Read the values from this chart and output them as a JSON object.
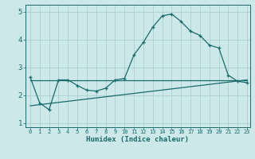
{
  "xlabel": "Humidex (Indice chaleur)",
  "bg_color": "#cce8e8",
  "grid_color": "#aacfcf",
  "line_color": "#1a6b6b",
  "xlim": [
    -0.5,
    23.3
  ],
  "ylim": [
    0.85,
    5.25
  ],
  "yticks": [
    1,
    2,
    3,
    4,
    5
  ],
  "xticks": [
    0,
    1,
    2,
    3,
    4,
    5,
    6,
    7,
    8,
    9,
    10,
    11,
    12,
    13,
    14,
    15,
    16,
    17,
    18,
    19,
    20,
    21,
    22,
    23
  ],
  "curve1_x": [
    0,
    1,
    2,
    3,
    4,
    5,
    6,
    7,
    8,
    9,
    10,
    11,
    12,
    13,
    14,
    15,
    16,
    17,
    18,
    19,
    20,
    21,
    22,
    23
  ],
  "curve1_y": [
    2.65,
    1.72,
    1.48,
    2.55,
    2.55,
    2.35,
    2.18,
    2.15,
    2.25,
    2.55,
    2.6,
    3.45,
    3.9,
    4.45,
    4.85,
    4.92,
    4.65,
    4.3,
    4.15,
    3.8,
    3.7,
    2.72,
    2.5,
    2.45
  ],
  "curve2_x": [
    0,
    23
  ],
  "curve2_y": [
    1.62,
    2.55
  ],
  "curve3_x": [
    0,
    23
  ],
  "curve3_y": [
    2.55,
    2.55
  ]
}
